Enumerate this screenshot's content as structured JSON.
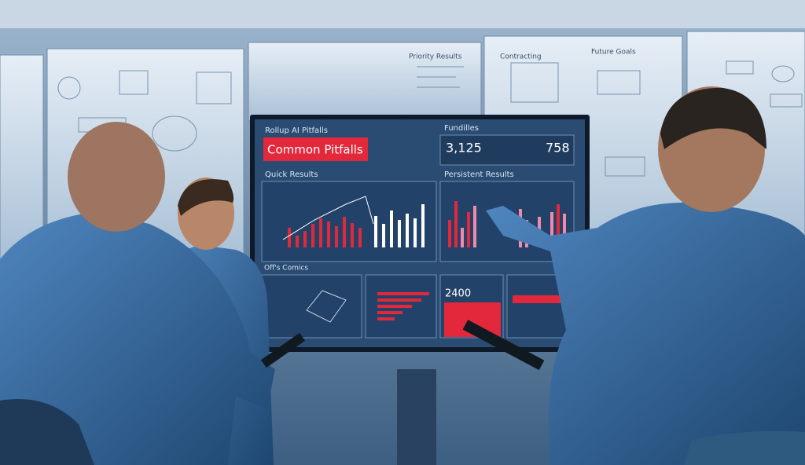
{
  "whiteboards": {
    "labels": [
      "Priority Results",
      "Contracting",
      "Future Goals"
    ]
  },
  "screen": {
    "header": "Rollup AI Pitfalls",
    "banner": "Common Pitfalls",
    "stats_label": "Fundilles",
    "stat_1": "3,125",
    "stat_2": "758",
    "panel_titles": [
      "Quick Results",
      "Persistent Results"
    ],
    "section": "Off's Comics",
    "big_stat": "2400"
  }
}
